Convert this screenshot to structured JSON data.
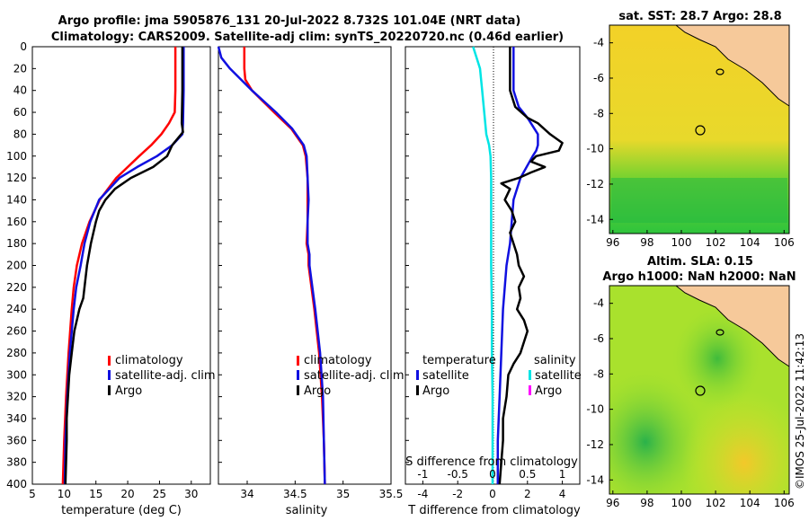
{
  "header": {
    "line1": "Argo profile: jma 5905876_131 20-Jul-2022 8.732S 101.04E (NRT data)",
    "line2": "Climatology: CARS2009. Satellite-adj clim: synTS_20220720.nc (0.46d earlier)"
  },
  "colors": {
    "climatology": "#ff0000",
    "satellite": "#1010e0",
    "argo": "#000000",
    "sal_sat": "#00e5e5",
    "sal_argo": "#ff00ff"
  },
  "depth_ticks": [
    "0",
    "20",
    "40",
    "60",
    "80",
    "100",
    "120",
    "140",
    "160",
    "180",
    "200",
    "220",
    "240",
    "260",
    "280",
    "300",
    "320",
    "340",
    "360",
    "380",
    "400"
  ],
  "chart_data": [
    {
      "type": "line",
      "id": "temperature",
      "xlabel": "temperature (deg C)",
      "ylabel": "",
      "ylim": [
        0,
        400
      ],
      "xlim": [
        5,
        33
      ],
      "xticks": [
        "5",
        "10",
        "15",
        "20",
        "25",
        "30"
      ],
      "legend": [
        "climatology",
        "satellite-adj. clim",
        "Argo"
      ],
      "series": [
        {
          "name": "climatology",
          "depth": [
            0,
            40,
            60,
            70,
            80,
            90,
            100,
            120,
            140,
            160,
            180,
            200,
            220,
            240,
            280,
            320,
            360,
            400
          ],
          "values": [
            27.5,
            27.5,
            27.4,
            26.5,
            25.3,
            23.7,
            21.8,
            18.2,
            15.6,
            14.0,
            12.8,
            12.0,
            11.5,
            11.2,
            10.7,
            10.3,
            10.0,
            9.8
          ]
        },
        {
          "name": "satellite-adj. clim",
          "depth": [
            0,
            40,
            70,
            80,
            90,
            100,
            110,
            120,
            140,
            160,
            180,
            200,
            220,
            240,
            280,
            320,
            360,
            400
          ],
          "values": [
            28.8,
            28.8,
            28.7,
            28.6,
            27.0,
            24.6,
            21.5,
            18.7,
            15.5,
            14.1,
            13.2,
            12.6,
            11.9,
            11.5,
            10.9,
            10.5,
            10.2,
            10.1
          ]
        },
        {
          "name": "Argo",
          "depth": [
            0,
            40,
            70,
            78,
            90,
            100,
            110,
            120,
            130,
            140,
            150,
            160,
            180,
            200,
            230,
            240,
            260,
            280,
            300,
            320,
            340,
            360,
            380,
            400
          ],
          "values": [
            28.6,
            28.6,
            28.5,
            28.7,
            27.0,
            26.2,
            24.0,
            20.5,
            18.0,
            16.5,
            15.5,
            15.0,
            14.2,
            13.6,
            13.0,
            12.4,
            11.6,
            11.2,
            10.8,
            10.6,
            10.4,
            10.4,
            10.3,
            10.2
          ]
        }
      ]
    },
    {
      "type": "line",
      "id": "salinity",
      "xlabel": "salinity",
      "ylabel": "",
      "ylim": [
        0,
        400
      ],
      "xlim": [
        33.7,
        35.5
      ],
      "xticks": [
        "34",
        "34.5",
        "35",
        "35.5"
      ],
      "legend": [
        "climatology",
        "satellite-adj. clim",
        "Argo"
      ],
      "series": [
        {
          "name": "climatology",
          "depth": [
            0,
            20,
            30,
            40,
            60,
            75,
            90,
            100,
            120,
            140,
            160,
            180,
            190,
            200,
            240,
            280,
            320,
            360,
            400
          ],
          "values": [
            33.97,
            33.97,
            33.98,
            34.05,
            34.28,
            34.46,
            34.58,
            34.61,
            34.63,
            34.63,
            34.63,
            34.62,
            34.64,
            34.64,
            34.7,
            34.75,
            34.78,
            34.8,
            34.81
          ]
        },
        {
          "name": "satellite-adj. clim",
          "depth": [
            0,
            10,
            20,
            40,
            60,
            75,
            90,
            100,
            120,
            140,
            160,
            180,
            190,
            200,
            240,
            280,
            320,
            360,
            400
          ],
          "values": [
            33.7,
            33.73,
            33.82,
            34.05,
            34.3,
            34.47,
            34.59,
            34.62,
            34.63,
            34.64,
            34.63,
            34.63,
            34.65,
            34.65,
            34.71,
            34.76,
            34.79,
            34.8,
            34.81
          ]
        },
        {
          "name": "Argo",
          "depth": [],
          "values": []
        }
      ]
    },
    {
      "type": "line",
      "id": "difference",
      "xlabel": "T difference from climatology",
      "xlabel2": "S difference from climatology",
      "ylim": [
        0,
        400
      ],
      "xlim": [
        -5,
        5
      ],
      "xticks": [
        "-4",
        "-2",
        "0",
        "2",
        "4"
      ],
      "xticks2": [
        "-1",
        "-0.5",
        "0",
        "0.5",
        "1"
      ],
      "legend_t_title": "temperature",
      "legend_s_title": "salinity",
      "legend_t": [
        "satellite",
        "Argo"
      ],
      "legend_s": [
        "satellite",
        "Argo"
      ],
      "series": [
        {
          "name": "temperature satellite",
          "depth": [
            0,
            40,
            55,
            65,
            80,
            90,
            95,
            100,
            120,
            140,
            160,
            180,
            200,
            240,
            280,
            320,
            360,
            400
          ],
          "values": [
            1.2,
            1.2,
            1.5,
            2.0,
            2.6,
            2.6,
            2.5,
            2.3,
            1.6,
            1.2,
            1.1,
            1.0,
            0.8,
            0.6,
            0.5,
            0.4,
            0.3,
            0.3
          ]
        },
        {
          "name": "temperature Argo",
          "depth": [
            0,
            40,
            55,
            65,
            70,
            80,
            88,
            95,
            100,
            105,
            110,
            115,
            120,
            125,
            130,
            140,
            150,
            160,
            170,
            180,
            190,
            200,
            210,
            220,
            230,
            240,
            250,
            260,
            270,
            280,
            290,
            300,
            320,
            340,
            360,
            380,
            400
          ],
          "values": [
            1.0,
            1.0,
            1.3,
            2.0,
            2.6,
            3.3,
            4.0,
            3.8,
            2.5,
            2.2,
            3.0,
            2.2,
            1.5,
            0.5,
            1.0,
            0.7,
            1.1,
            1.3,
            1.0,
            1.2,
            1.4,
            1.5,
            1.8,
            1.5,
            1.6,
            1.4,
            1.8,
            2.0,
            1.8,
            1.6,
            1.2,
            0.9,
            0.8,
            0.6,
            0.6,
            0.5,
            0.4
          ]
        },
        {
          "name": "salinity satellite",
          "depth": [
            0,
            10,
            20,
            40,
            60,
            80,
            90,
            100,
            120,
            160,
            200,
            240,
            280,
            320,
            360,
            400
          ],
          "values": [
            -0.28,
            -0.23,
            -0.18,
            -0.15,
            -0.12,
            -0.09,
            -0.05,
            -0.03,
            -0.02,
            -0.02,
            -0.02,
            -0.01,
            -0.01,
            0,
            0,
            0
          ]
        }
      ]
    }
  ],
  "maps": {
    "sst": {
      "title": "sat. SST: 28.7 Argo: 28.8",
      "yticks": [
        "-4",
        "-6",
        "-8",
        "-10",
        "-12",
        "-14"
      ],
      "xticks": [
        "96",
        "98",
        "100",
        "102",
        "104",
        "106"
      ]
    },
    "sla": {
      "title1": "Altim. SLA: 0.15",
      "title2": "Argo h1000: NaN h2000: NaN",
      "yticks": [
        "-4",
        "-6",
        "-8",
        "-10",
        "-12",
        "-14"
      ],
      "xticks": [
        "96",
        "98",
        "100",
        "102",
        "104",
        "106"
      ]
    }
  },
  "footer": {
    "stamp": "©IMOS 25-Jul-2022 11:42:13"
  }
}
